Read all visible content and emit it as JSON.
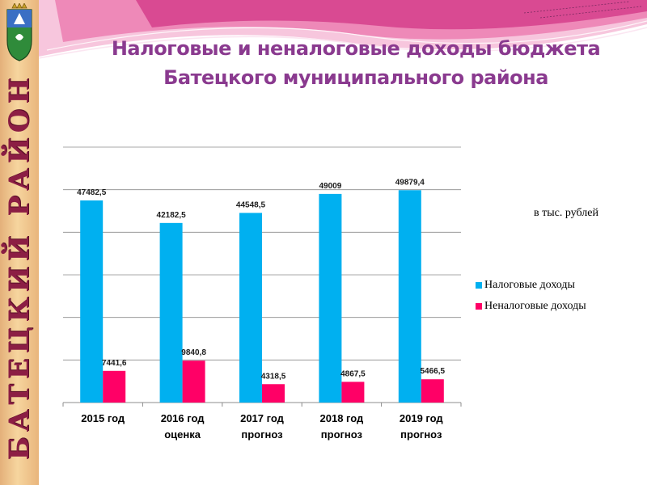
{
  "slide": {
    "side_label": "БАТЕЦКИЙ РАЙОН",
    "title_line1": "Налоговые и неналоговые доходы бюджета",
    "title_line2": "Батецкого муниципального района",
    "unit": "в тыс. рублей",
    "icons": {
      "emblem": "coat-of-arms-icon"
    },
    "colors": {
      "title": "#8a3a8f",
      "side_label": "#8c1e44",
      "band": "#f3cf96"
    }
  },
  "chart_data": {
    "type": "bar",
    "categories": [
      [
        "2015 год"
      ],
      [
        "2016 год",
        "оценка"
      ],
      [
        "2017 год",
        "прогноз"
      ],
      [
        "2018 год",
        "прогноз"
      ],
      [
        "2019 год",
        "прогноз"
      ]
    ],
    "series": [
      {
        "name": "Налоговые доходы",
        "color": "#00b0f0",
        "values": [
          47482.5,
          42182.5,
          44548.5,
          49009,
          49879.4
        ],
        "labels": [
          "47482,5",
          "42182,5",
          "44548,5",
          "49009",
          "49879,4"
        ]
      },
      {
        "name": "Неналоговые доходы",
        "color": "#ff0066",
        "values": [
          7441.6,
          9840.8,
          4318.5,
          4867.5,
          5466.5
        ],
        "labels": [
          "7441,6",
          "9840,8",
          "4318,5",
          "4867,5",
          "5466,5"
        ]
      }
    ],
    "ylim": [
      0,
      60000
    ],
    "grid": true,
    "legend": "right"
  }
}
